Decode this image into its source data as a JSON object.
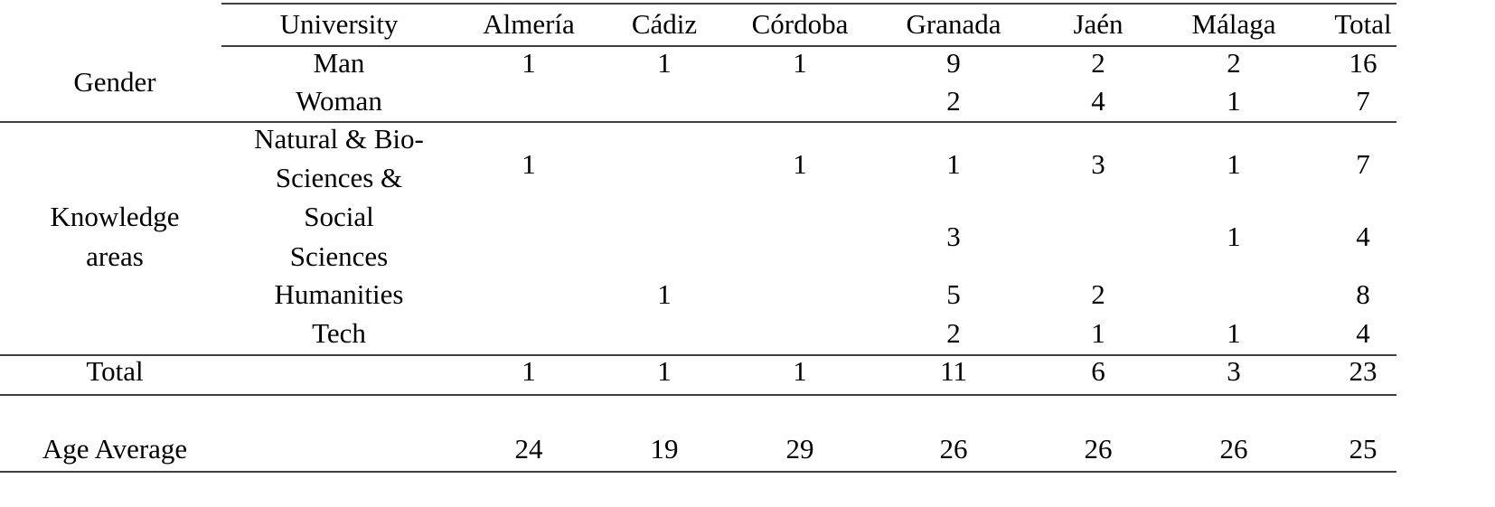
{
  "table": {
    "header": [
      "University",
      "Almería",
      "Cádiz",
      "Córdoba",
      "Granada",
      "Jaén",
      "Málaga",
      "Total"
    ],
    "groups": [
      {
        "label": [
          "Gender"
        ],
        "rows": [
          {
            "label": [
              "Man"
            ],
            "cells": [
              1,
              1,
              1,
              9,
              2,
              2,
              16
            ]
          },
          {
            "label": [
              "Woman"
            ],
            "cells": [
              null,
              null,
              null,
              2,
              4,
              1,
              7
            ]
          }
        ]
      },
      {
        "label": [
          "Knowledge",
          "areas"
        ],
        "rows": [
          {
            "label": [
              "Natural & Bio-",
              "Sciences &"
            ],
            "cells": [
              1,
              null,
              1,
              1,
              3,
              1,
              7
            ]
          },
          {
            "label": [
              "Social",
              "Sciences"
            ],
            "cells": [
              null,
              null,
              null,
              3,
              null,
              1,
              4
            ]
          },
          {
            "label": [
              "Humanities"
            ],
            "cells": [
              null,
              1,
              null,
              5,
              2,
              null,
              8
            ]
          },
          {
            "label": [
              "Tech"
            ],
            "cells": [
              null,
              null,
              null,
              2,
              1,
              1,
              4
            ]
          }
        ]
      }
    ],
    "summary": [
      {
        "label": "Total",
        "cells": [
          1,
          1,
          1,
          11,
          6,
          3,
          23
        ]
      },
      {
        "label": "Age Average",
        "cells": [
          24,
          19,
          29,
          26,
          26,
          26,
          25
        ]
      }
    ]
  }
}
